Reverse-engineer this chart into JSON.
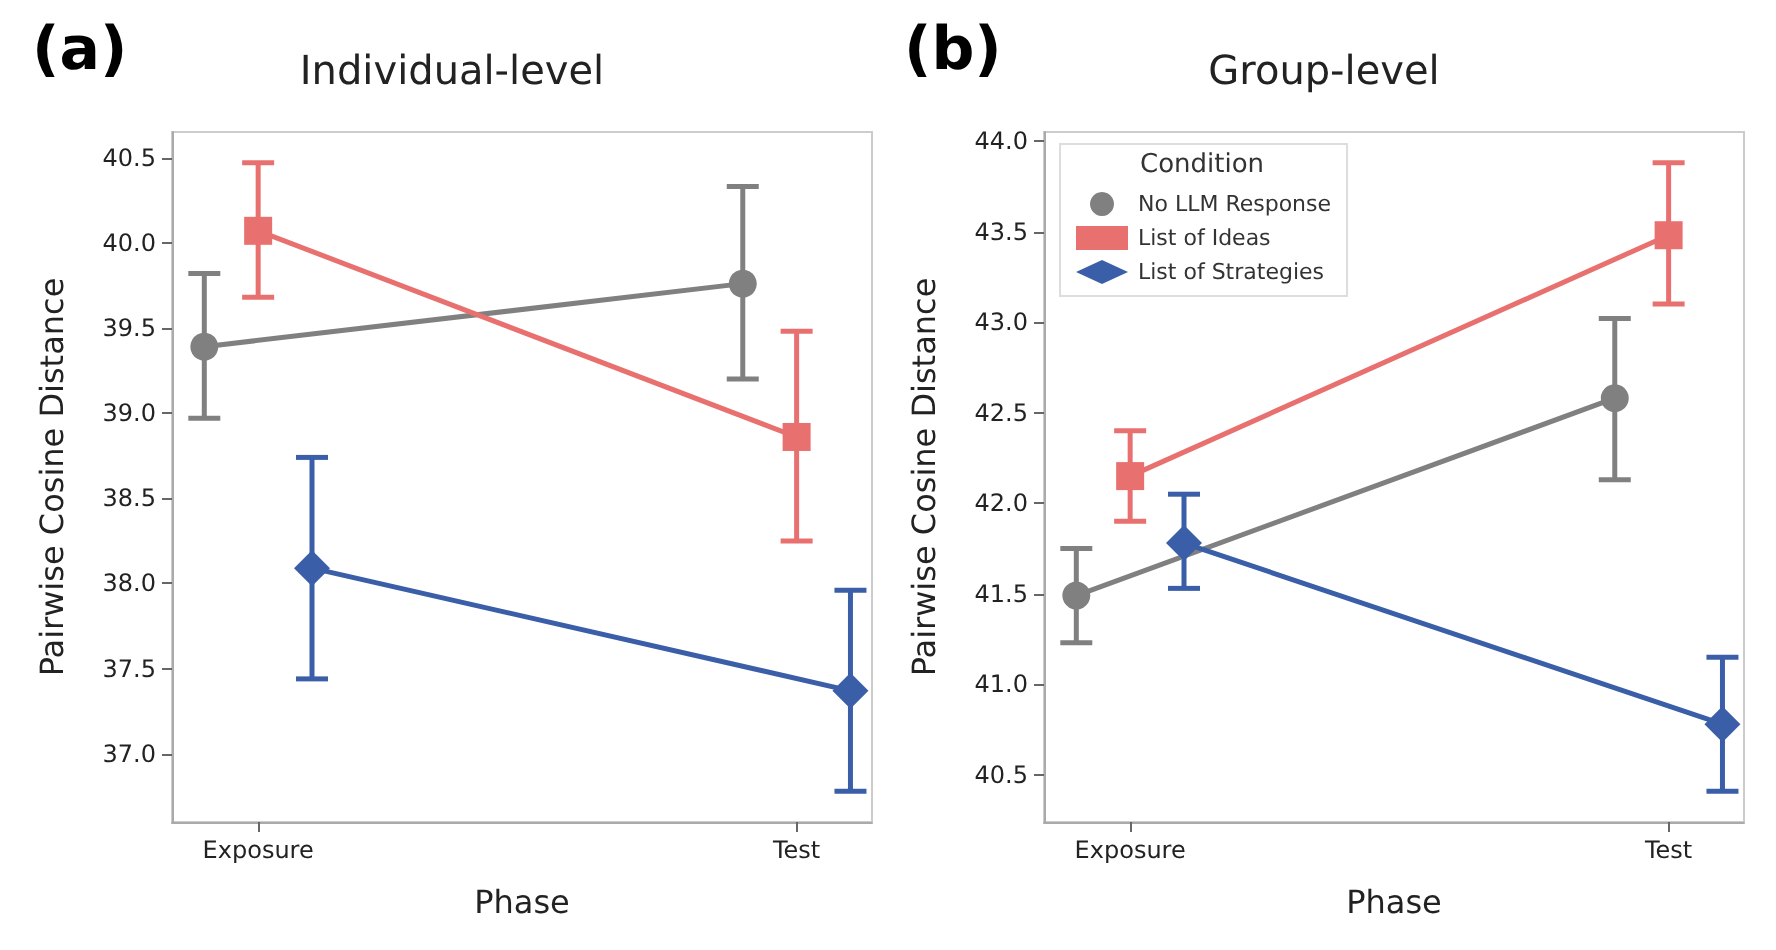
{
  "chart_data": [
    {
      "type": "line",
      "title": "Individual-level",
      "annotations": [
        "(a)"
      ],
      "xlabel": "Phase",
      "ylabel": "Pairwise Cosine Distance",
      "categories": [
        "Exposure",
        "Test"
      ],
      "ylim": [
        36.6,
        40.65
      ],
      "yticks": [
        {
          "value": 37,
          "label": "37.0"
        },
        37.5,
        {
          "value": 38,
          "label": "38.0"
        },
        38.5,
        {
          "value": 39,
          "label": "39.0"
        },
        39.5,
        {
          "value": 40,
          "label": "40.0"
        },
        40.5
      ],
      "grid": false,
      "legend": false,
      "line_style": "solid",
      "series": [
        {
          "color": "#808080",
          "marker": "circle",
          "values": [
            39.39,
            39.76
          ],
          "errors": [
            [
              38.97,
              39.82
            ],
            [
              39.2,
              40.33
            ]
          ]
        },
        {
          "color": "#e8706f",
          "marker": "square",
          "values": [
            40.07,
            38.86
          ],
          "errors": [
            [
              39.68,
              40.47
            ],
            [
              38.25,
              39.48
            ]
          ]
        },
        {
          "color": "#3a5fa8",
          "marker": "diamond",
          "values": [
            38.09,
            37.37
          ],
          "errors": [
            [
              37.44,
              38.74
            ],
            [
              36.78,
              37.96
            ]
          ]
        }
      ]
    },
    {
      "type": "line",
      "title": "Group-level",
      "annotations": [
        "(b)"
      ],
      "xlabel": "Phase",
      "ylabel": "Pairwise Cosine Distance",
      "categories": [
        "Exposure",
        "Test"
      ],
      "ylim": [
        40.24,
        44.05
      ],
      "yticks": [
        40.5,
        {
          "value": 41,
          "label": "41.0"
        },
        41.5,
        {
          "value": 42,
          "label": "42.0"
        },
        42.5,
        {
          "value": 43,
          "label": "43.0"
        },
        43.5,
        {
          "value": 44,
          "label": "44.0"
        }
      ],
      "grid": false,
      "legend": "top left",
      "legend_title": "Condition",
      "line_style": "solid",
      "series": [
        {
          "name": "No LLM Response",
          "color": "#808080",
          "marker": "circle",
          "values": [
            41.49,
            42.58
          ],
          "errors": [
            [
              41.23,
              41.75
            ],
            [
              42.13,
              43.02
            ]
          ]
        },
        {
          "name": "List of Ideas",
          "color": "#e8706f",
          "marker": "square",
          "values": [
            42.15,
            43.48
          ],
          "errors": [
            [
              41.9,
              42.4
            ],
            [
              43.1,
              43.88
            ]
          ]
        },
        {
          "name": "List of Strategies",
          "color": "#3a5fa8",
          "marker": "diamond",
          "values": [
            41.78,
            40.78
          ],
          "errors": [
            [
              41.53,
              42.05
            ],
            [
              40.41,
              41.15
            ]
          ]
        }
      ]
    }
  ]
}
